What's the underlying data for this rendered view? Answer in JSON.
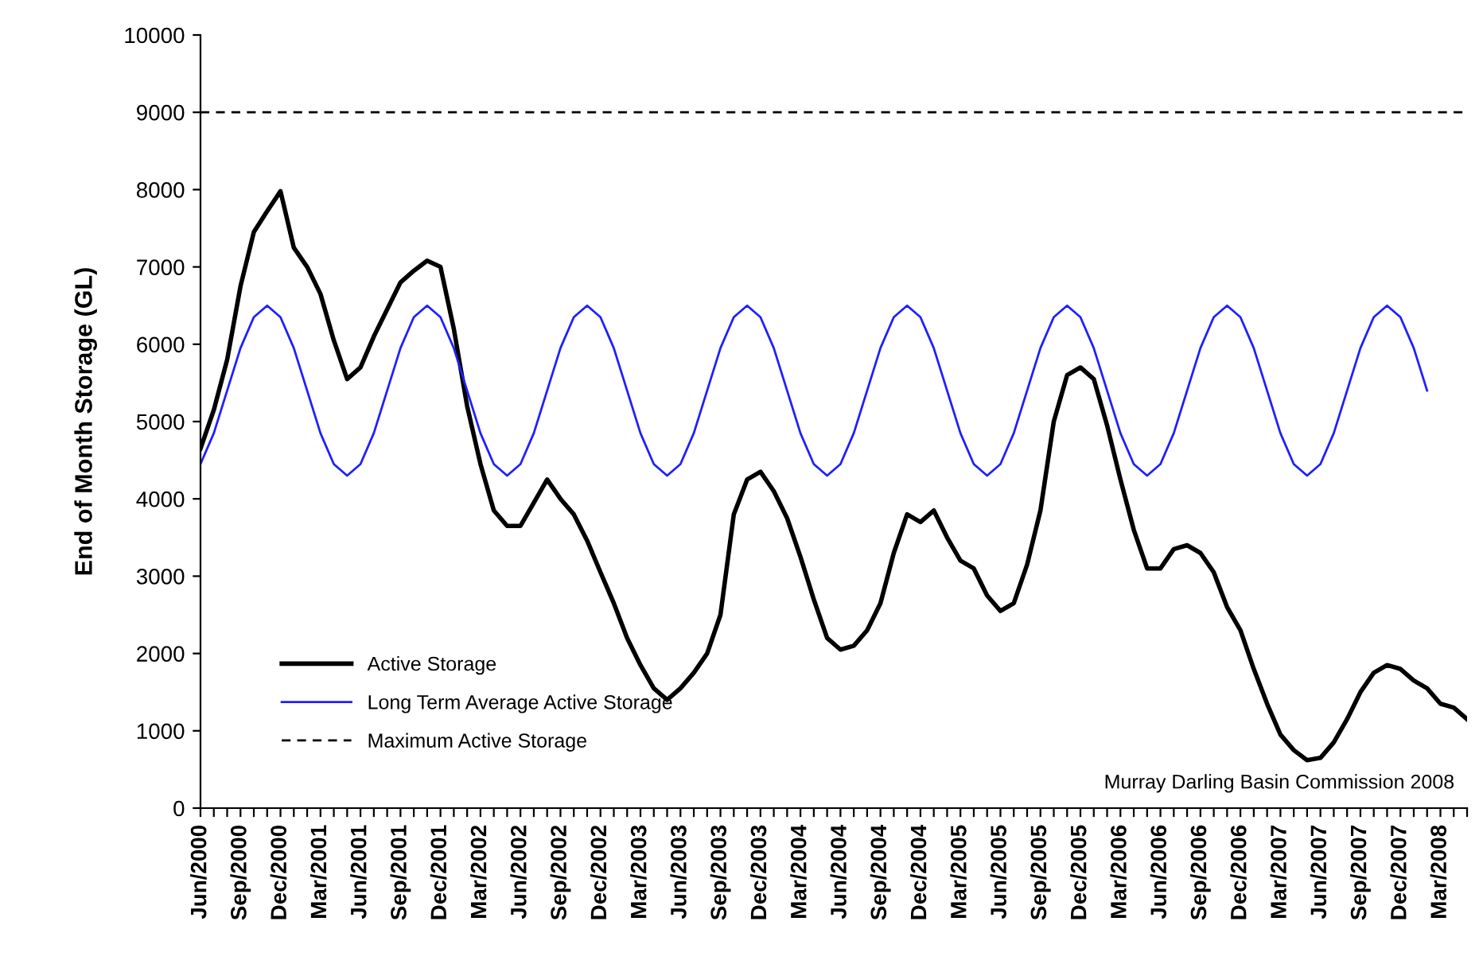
{
  "chart_data": {
    "type": "line",
    "ylabel": "End of Month Storage (GL)",
    "categories": [
      "Jun/2000",
      null,
      null,
      "Sep/2000",
      null,
      null,
      "Dec/2000",
      null,
      null,
      "Mar/2001",
      null,
      null,
      "Jun/2001",
      null,
      null,
      "Sep/2001",
      null,
      null,
      "Dec/2001",
      null,
      null,
      "Mar/2002",
      null,
      null,
      "Jun/2002",
      null,
      null,
      "Sep/2002",
      null,
      null,
      "Dec/2002",
      null,
      null,
      "Mar/2003",
      null,
      null,
      "Jun/2003",
      null,
      null,
      "Sep/2003",
      null,
      null,
      "Dec/2003",
      null,
      null,
      "Mar/2004",
      null,
      null,
      "Jun/2004",
      null,
      null,
      "Sep/2004",
      null,
      null,
      "Dec/2004",
      null,
      null,
      "Mar/2005",
      null,
      null,
      "Jun/2005",
      null,
      null,
      "Sep/2005",
      null,
      null,
      "Dec/2005",
      null,
      null,
      "Mar/2006",
      null,
      null,
      "Jun/2006",
      null,
      null,
      "Sep/2006",
      null,
      null,
      "Dec/2006",
      null,
      null,
      "Mar/2007",
      null,
      null,
      "Jun/2007",
      null,
      null,
      "Sep/2007",
      null,
      null,
      "Dec/2007",
      null,
      null,
      "Mar/2008",
      null,
      null
    ],
    "series": [
      {
        "name": "Active Storage",
        "color": "#000000",
        "values": [
          4650,
          5150,
          5800,
          6750,
          7450,
          7720,
          7980,
          7250,
          7000,
          6650,
          6050,
          5550,
          5700,
          6100,
          6450,
          6800,
          6950,
          7080,
          7000,
          6200,
          5200,
          4450,
          3850,
          3650,
          3650,
          3950,
          4250,
          4000,
          3800,
          3460,
          3050,
          2650,
          2200,
          1850,
          1550,
          1400,
          1550,
          1750,
          2000,
          2500,
          3800,
          4250,
          4350,
          4100,
          3750,
          3250,
          2700,
          2200,
          2050,
          2100,
          2300,
          2650,
          3300,
          3800,
          3700,
          3850,
          3500,
          3200,
          3100,
          2750,
          2550,
          2650,
          3150,
          3850,
          5000,
          5600,
          5700,
          5550,
          4950,
          4250,
          3600,
          3100,
          3100,
          3350,
          3400,
          3300,
          3050,
          2600,
          2300,
          1800,
          1350,
          950,
          750,
          620,
          650,
          850,
          1150,
          1500,
          1750,
          1850,
          1800,
          1650,
          1550,
          1350,
          1300,
          1150
        ]
      },
      {
        "name": "Long Term Average Active Storage",
        "color": "#1f1fff",
        "values": [
          4450,
          4850,
          5400,
          5950,
          6350,
          6500,
          6350,
          5950,
          5400,
          4850,
          4450,
          4300,
          4450,
          4850,
          5400,
          5950,
          6350,
          6500,
          6350,
          5950,
          5400,
          4850,
          4450,
          4300,
          4450,
          4850,
          5400,
          5950,
          6350,
          6500,
          6350,
          5950,
          5400,
          4850,
          4450,
          4300,
          4450,
          4850,
          5400,
          5950,
          6350,
          6500,
          6350,
          5950,
          5400,
          4850,
          4450,
          4300,
          4450,
          4850,
          5400,
          5950,
          6350,
          6500,
          6350,
          5950,
          5400,
          4850,
          4450,
          4300,
          4450,
          4850,
          5400,
          5950,
          6350,
          6500,
          6350,
          5950,
          5400,
          4850,
          4450,
          4300,
          4450,
          4850,
          5400,
          5950,
          6350,
          6500,
          6350,
          5950,
          5400,
          4850,
          4450,
          4300,
          4450,
          4850,
          5400,
          5950,
          6350,
          6500,
          6350,
          5950,
          5400,
          null,
          null,
          null
        ]
      }
    ],
    "ref_lines": [
      {
        "axis": "y",
        "value": 9000,
        "label": "Maximum Active Storage",
        "color": "#000000",
        "line_style": "dashed"
      }
    ],
    "ylim": [
      0,
      10000
    ],
    "yticks": [
      0,
      1000,
      2000,
      3000,
      4000,
      5000,
      6000,
      7000,
      8000,
      9000,
      10000
    ],
    "grid": false,
    "legend": "bottom left",
    "marker": "none",
    "line_style": "solid",
    "annotations": [
      "Murray Darling Basin Commission 2008"
    ]
  }
}
